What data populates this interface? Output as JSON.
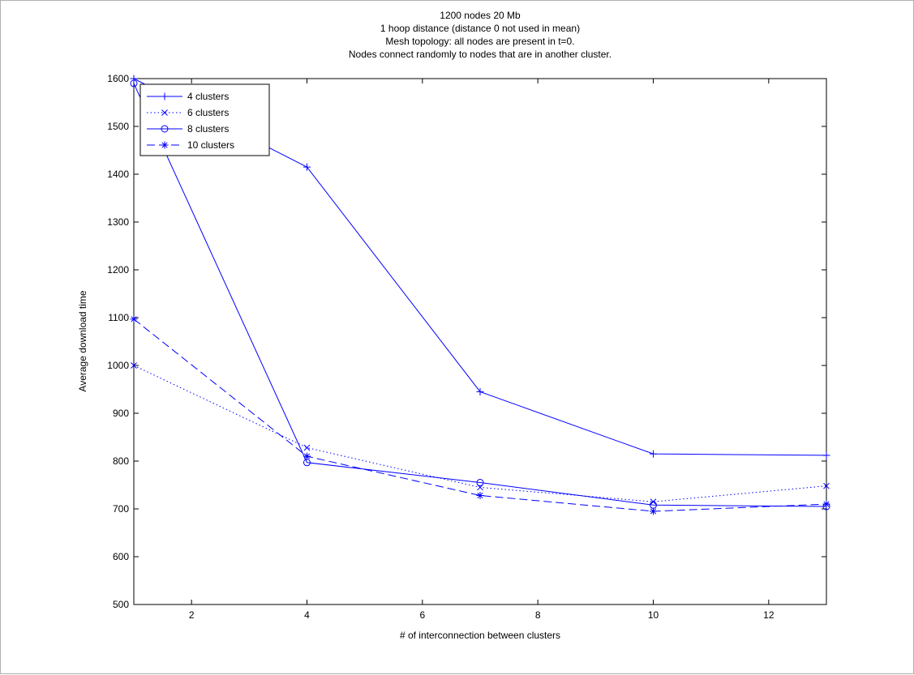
{
  "chart_data": {
    "type": "line",
    "title_lines": [
      "1200 nodes  20 Mb",
      "1 hoop distance (distance 0 not used in mean)",
      "Mesh topology: all nodes are present in t=0.",
      "Nodes connect randomly to nodes that are in another cluster."
    ],
    "xlabel": "# of interconnection between clusters",
    "ylabel": "Average download time",
    "xlim": [
      1,
      13
    ],
    "ylim": [
      500,
      1600
    ],
    "xticks": [
      2,
      4,
      6,
      8,
      10,
      12
    ],
    "yticks": [
      500,
      600,
      700,
      800,
      900,
      1000,
      1100,
      1200,
      1300,
      1400,
      1500,
      1600
    ],
    "x": [
      1,
      4,
      7,
      10,
      13
    ],
    "legend_position": "top-left",
    "grid": false,
    "line_color": "#0000ff",
    "series": [
      {
        "name": "4 clusters",
        "values": [
          1600,
          1415,
          945,
          815,
          812
        ],
        "marker": "plus",
        "dash": "solid"
      },
      {
        "name": "6 clusters",
        "values": [
          1000,
          828,
          745,
          715,
          748
        ],
        "marker": "x",
        "dash": "dotted"
      },
      {
        "name": "8 clusters",
        "values": [
          1590,
          797,
          755,
          708,
          705
        ],
        "marker": "circle",
        "dash": "solid"
      },
      {
        "name": "10 clusters",
        "values": [
          1097,
          810,
          728,
          695,
          710
        ],
        "marker": "star",
        "dash": "dashed"
      }
    ]
  }
}
